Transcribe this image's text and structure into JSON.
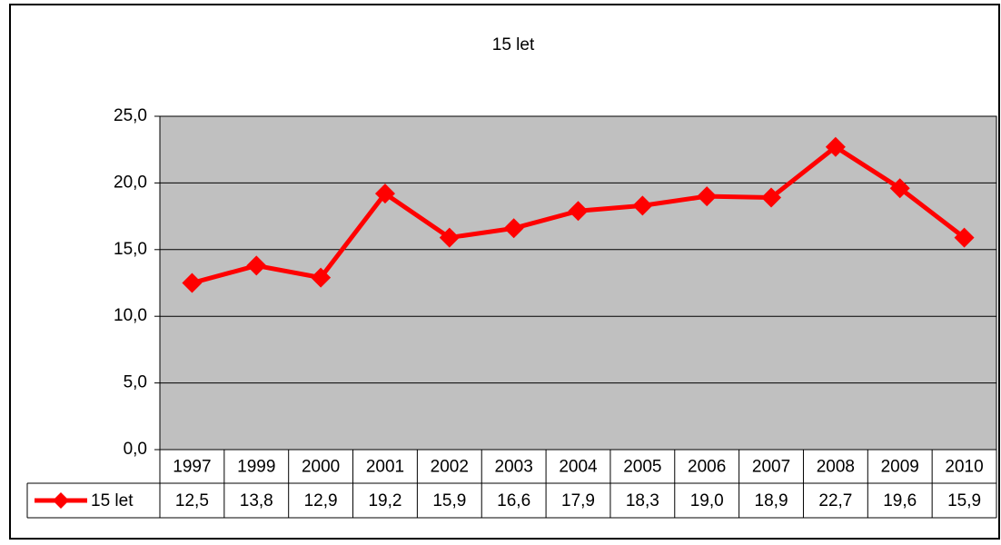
{
  "chart_data": {
    "type": "line",
    "title": "15 let",
    "categories": [
      "1997",
      "1999",
      "2000",
      "2001",
      "2002",
      "2003",
      "2004",
      "2005",
      "2006",
      "2007",
      "2008",
      "2009",
      "2010"
    ],
    "series": [
      {
        "name": "15 let",
        "color": "#ff0000",
        "values": [
          12.5,
          13.8,
          12.9,
          19.2,
          15.9,
          16.6,
          17.9,
          18.3,
          19.0,
          18.9,
          22.7,
          19.6,
          15.9
        ],
        "value_labels": [
          "12,5",
          "13,8",
          "12,9",
          "19,2",
          "15,9",
          "16,6",
          "17,9",
          "18,3",
          "19,0",
          "18,9",
          "22,7",
          "19,6",
          "15,9"
        ]
      }
    ],
    "ylim": [
      0,
      25
    ],
    "yticks": [
      {
        "value": 0,
        "label": "0,0"
      },
      {
        "value": 5,
        "label": "5,0"
      },
      {
        "value": 10,
        "label": "10,0"
      },
      {
        "value": 15,
        "label": "15,0"
      },
      {
        "value": 20,
        "label": "20,0"
      },
      {
        "value": 25,
        "label": "25,0"
      }
    ],
    "grid": true,
    "plot_background": "#c0c0c0"
  }
}
